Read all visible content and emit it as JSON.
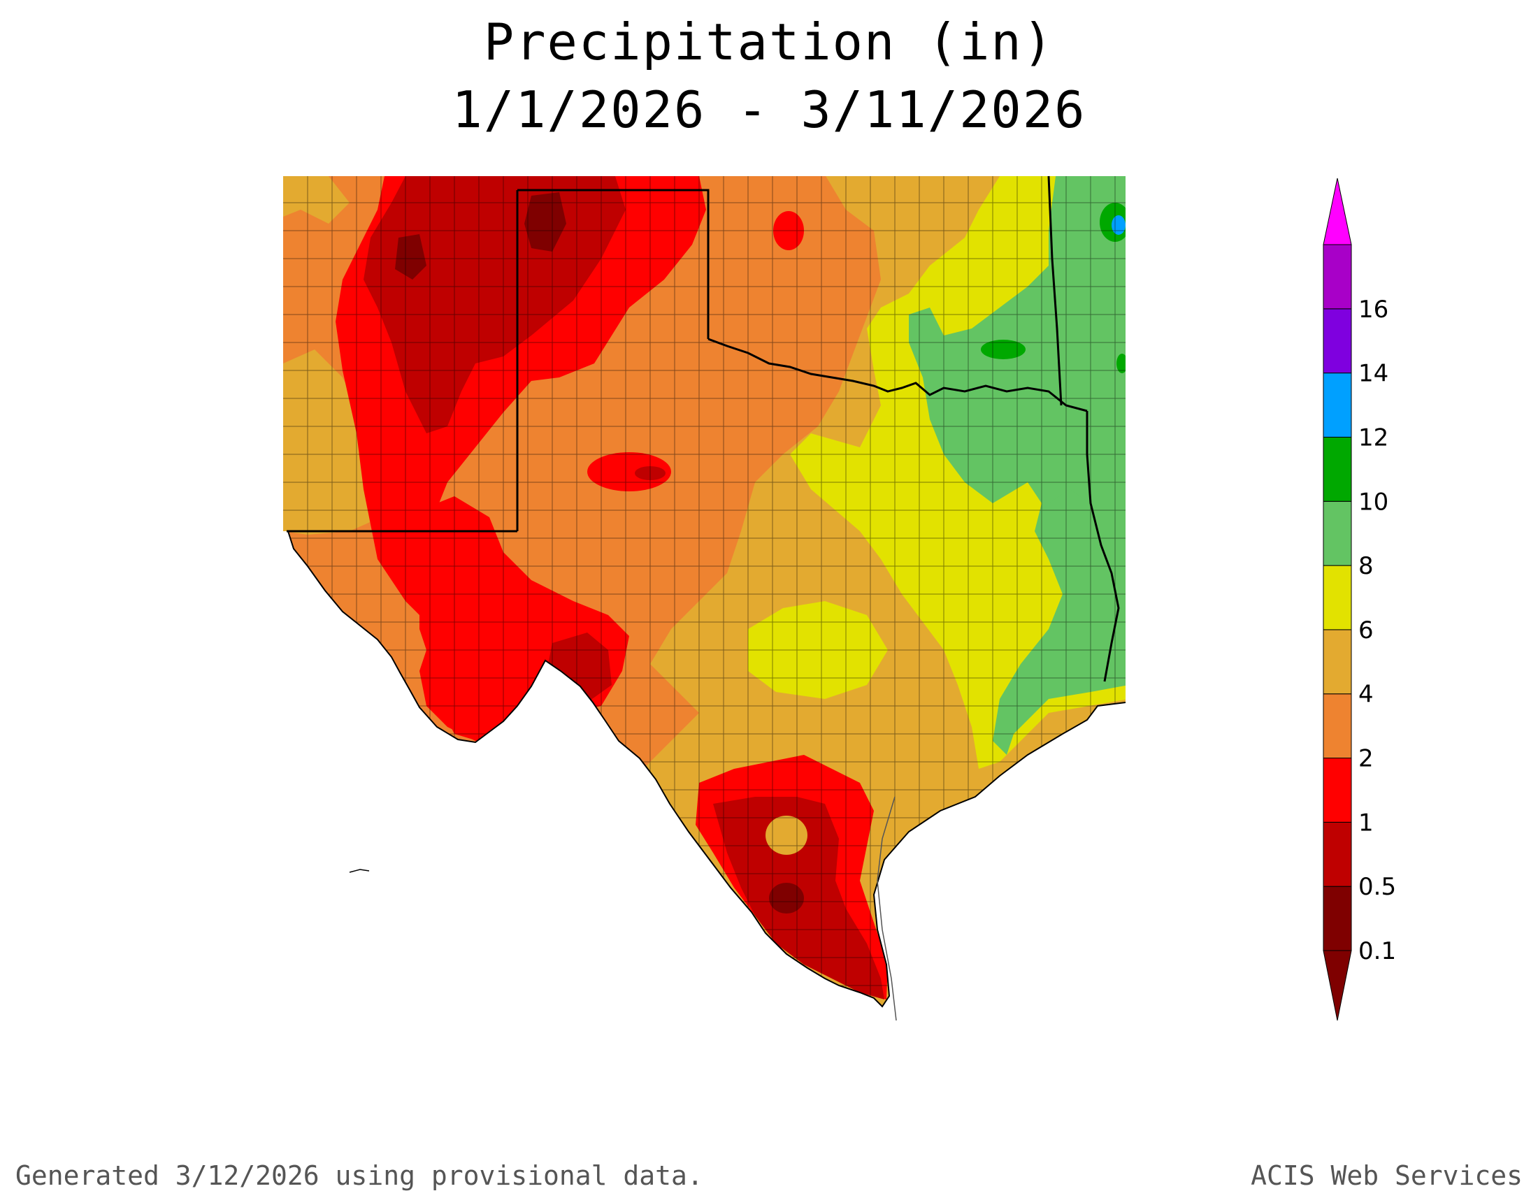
{
  "title": {
    "line1": "Precipitation (in)",
    "line2": "1/1/2026 - 3/11/2026"
  },
  "legend": {
    "units": "in",
    "bins": [
      {
        "label": "0.1",
        "color": "#7f0000"
      },
      {
        "label": "0.5",
        "color": "#bf0000"
      },
      {
        "label": "1",
        "color": "#ff0000"
      },
      {
        "label": "2",
        "color": "#ee8330"
      },
      {
        "label": "4",
        "color": "#e3aa30"
      },
      {
        "label": "6",
        "color": "#e2e200"
      },
      {
        "label": "8",
        "color": "#63c463"
      },
      {
        "label": "10",
        "color": "#00a800"
      },
      {
        "label": "12",
        "color": "#00a0ff"
      },
      {
        "label": "14",
        "color": "#7f00df"
      },
      {
        "label": "16",
        "color": "#a800c8"
      }
    ],
    "below_color": "#7f0000",
    "above_color": "#ff00ff"
  },
  "map": {
    "region": "Texas and surrounding states",
    "colors": {
      "lt_0.1": "#7f0000",
      "0.1_0.5": "#bf0000",
      "0.5_1": "#ff0000",
      "1_2": "#ee8330",
      "2_4": "#e3aa30",
      "4_6": "#e2e200",
      "6_8": "#63c463",
      "8_10": "#00a800",
      "10_12": "#00a0ff"
    }
  },
  "footer": {
    "left": "Generated 3/12/2026  using provisional data.",
    "right": "ACIS Web Services"
  }
}
